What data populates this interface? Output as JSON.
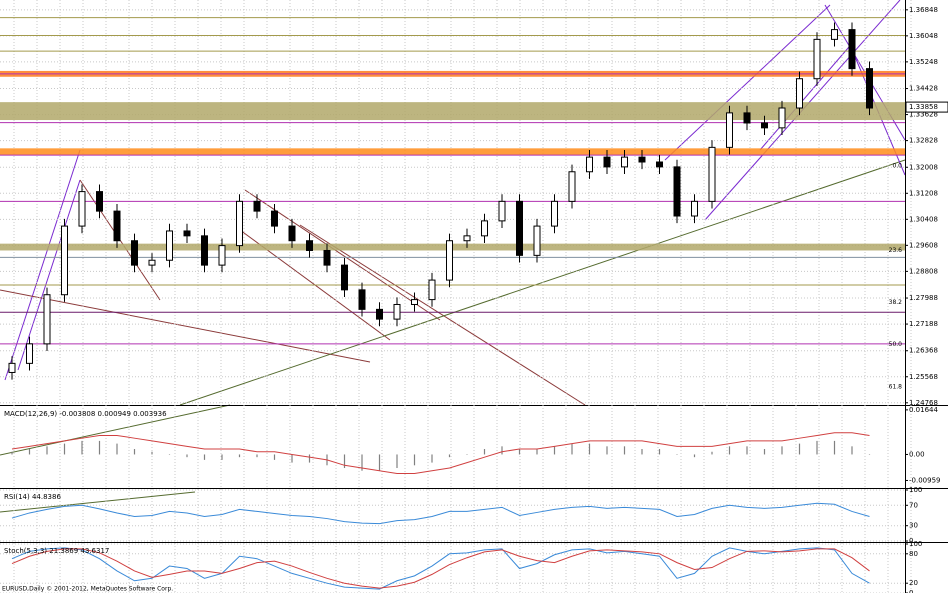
{
  "chart_data": [
    {
      "type": "candlestick",
      "ylim": [
        1.247,
        1.3715
      ],
      "yticks": [
        1.24768,
        1.25568,
        1.26368,
        1.27188,
        1.27988,
        1.28808,
        1.29608,
        1.30408,
        1.31208,
        1.32008,
        1.32828,
        1.33628,
        1.34428,
        1.35248,
        1.36048,
        1.36848
      ],
      "grid": true,
      "open": [
        1.257,
        1.2598,
        1.2658,
        1.2809,
        1.302,
        1.3126,
        1.3066,
        1.2975,
        1.29,
        1.2915,
        1.3005,
        1.299,
        1.29,
        1.296,
        1.3096,
        1.3066,
        1.302,
        1.2975,
        1.2945,
        1.29,
        1.2824,
        1.2764,
        1.2734,
        1.2779,
        1.2794,
        1.2854,
        1.2975,
        1.299,
        1.3036,
        1.3096,
        1.293,
        1.302,
        1.3096,
        1.3187,
        1.3232,
        1.3202,
        1.3232,
        1.3217,
        1.3202,
        1.3051,
        1.3096,
        1.3262,
        1.3368,
        1.3337,
        1.3322,
        1.3383,
        1.3473,
        1.3594,
        1.3624,
        1.3504
      ],
      "high": [
        1.262,
        1.268,
        1.2831,
        1.3042,
        1.3148,
        1.3148,
        1.3088,
        1.2997,
        1.2937,
        1.3027,
        1.3027,
        1.3012,
        1.2982,
        1.3118,
        1.3118,
        1.3088,
        1.3042,
        1.2997,
        1.2967,
        1.2922,
        1.2846,
        1.2786,
        1.2801,
        1.2816,
        1.2876,
        1.2997,
        1.3012,
        1.3058,
        1.3118,
        1.3118,
        1.3042,
        1.3118,
        1.3209,
        1.3254,
        1.3254,
        1.3254,
        1.3254,
        1.3239,
        1.3224,
        1.3118,
        1.3284,
        1.339,
        1.339,
        1.3359,
        1.3405,
        1.3495,
        1.3616,
        1.3646,
        1.3646,
        1.3526
      ],
      "low": [
        1.2548,
        1.2576,
        1.2636,
        1.2787,
        1.2998,
        1.3044,
        1.2953,
        1.2878,
        1.2878,
        1.2893,
        1.2968,
        1.2878,
        1.2878,
        1.2938,
        1.3044,
        1.2998,
        1.2953,
        1.2923,
        1.2878,
        1.2802,
        1.2742,
        1.2712,
        1.2712,
        1.2757,
        1.2772,
        1.2832,
        1.2953,
        1.2968,
        1.3014,
        1.2908,
        1.2908,
        1.2998,
        1.3074,
        1.3165,
        1.318,
        1.318,
        1.3195,
        1.318,
        1.3029,
        1.3029,
        1.3074,
        1.324,
        1.3315,
        1.33,
        1.33,
        1.3361,
        1.3451,
        1.3572,
        1.3482,
        1.3361
      ],
      "close": [
        1.2598,
        1.2658,
        1.2809,
        1.302,
        1.3126,
        1.3066,
        1.2975,
        1.29,
        1.2915,
        1.3005,
        1.299,
        1.29,
        1.296,
        1.3096,
        1.3066,
        1.302,
        1.2975,
        1.2945,
        1.29,
        1.2824,
        1.2764,
        1.2734,
        1.2779,
        1.2794,
        1.2854,
        1.2975,
        1.299,
        1.3036,
        1.3096,
        1.293,
        1.302,
        1.3096,
        1.3187,
        1.3232,
        1.3202,
        1.3232,
        1.3217,
        1.3202,
        1.3051,
        1.3096,
        1.3262,
        1.3368,
        1.3337,
        1.3322,
        1.3383,
        1.3473,
        1.3594,
        1.3624,
        1.3504,
        1.3383
      ],
      "bands": [
        {
          "from": 1.3346,
          "to": 1.3401,
          "color": "#b1a86a"
        },
        {
          "from": 1.3238,
          "to": 1.3259,
          "color": "#ff8c1a"
        },
        {
          "from": 1.3479,
          "to": 1.3497,
          "color": "#ff7a1a"
        },
        {
          "from": 1.2945,
          "to": 1.2966,
          "color": "#b1a86a"
        }
      ],
      "levels": [
        {
          "value": 1.3661,
          "color": "#a39a4c"
        },
        {
          "value": 1.3606,
          "color": "#a39a4c"
        },
        {
          "value": 1.3558,
          "color": "#a39a4c"
        },
        {
          "value": 1.3488,
          "color": "#b030b0"
        },
        {
          "value": 1.3338,
          "color": "#b030b0"
        },
        {
          "value": 1.3238,
          "color": "#b030b0"
        },
        {
          "value": 1.3096,
          "color": "#b030b0"
        },
        {
          "value": 1.2924,
          "color": "#8090a0"
        },
        {
          "value": 1.2839,
          "color": "#a39a4c"
        },
        {
          "value": 1.2755,
          "color": "#6a1a6a"
        },
        {
          "value": 1.2658,
          "color": "#b030b0"
        }
      ],
      "annotations": [
        {
          "value": 1.3193,
          "label": "0.0"
        },
        {
          "value": 1.2933,
          "label": "23.6"
        },
        {
          "value": 1.2773,
          "label": "38.2"
        },
        {
          "value": 1.2643,
          "label": "50.0"
        },
        {
          "value": 1.2513,
          "label": "61.8"
        }
      ],
      "last": 1.33858
    },
    {
      "type": "macd",
      "title": "MACD(12,26,9) -0.003808 0.000949 0.003936",
      "ylim": [
        -0.012,
        0.0175
      ],
      "yticks": [
        -0.00959,
        {
          "value": 0,
          "label": "0.00"
        },
        0.01644
      ],
      "histogram": {
        "color": "#808080",
        "values": [
          0.001,
          0.002,
          0.003,
          0.004,
          0.005,
          0.005,
          0.004,
          0.002,
          0.001,
          0.0,
          -0.001,
          -0.002,
          -0.002,
          -0.001,
          -0.001,
          -0.002,
          -0.003,
          -0.003,
          -0.004,
          -0.005,
          -0.006,
          -0.006,
          -0.005,
          -0.004,
          -0.003,
          -0.001,
          0.0,
          0.002,
          0.003,
          0.002,
          0.002,
          0.003,
          0.004,
          0.004,
          0.003,
          0.003,
          0.002,
          0.002,
          0.0,
          -0.001,
          0.001,
          0.003,
          0.003,
          0.002,
          0.003,
          0.004,
          0.005,
          0.005,
          0.003,
          0.0
        ]
      },
      "signal": {
        "color": "#d04040",
        "values": [
          0.002,
          0.003,
          0.004,
          0.005,
          0.006,
          0.007,
          0.007,
          0.006,
          0.005,
          0.004,
          0.003,
          0.002,
          0.002,
          0.002,
          0.001,
          0.001,
          0.0,
          -0.001,
          -0.002,
          -0.004,
          -0.005,
          -0.006,
          -0.007,
          -0.007,
          -0.006,
          -0.005,
          -0.003,
          -0.001,
          0.001,
          0.002,
          0.002,
          0.003,
          0.004,
          0.005,
          0.005,
          0.005,
          0.005,
          0.004,
          0.003,
          0.003,
          0.003,
          0.004,
          0.005,
          0.005,
          0.005,
          0.006,
          0.007,
          0.008,
          0.008,
          0.007
        ]
      }
    },
    {
      "type": "line",
      "title": "RSI(14) 44.8386",
      "ylim": [
        0,
        100
      ],
      "yticks": [
        0,
        30,
        70,
        100
      ],
      "grid": true,
      "series": [
        {
          "color": "#3a8ad8",
          "values": [
            45,
            55,
            62,
            68,
            70,
            63,
            55,
            48,
            50,
            58,
            55,
            48,
            52,
            62,
            58,
            54,
            50,
            48,
            44,
            38,
            35,
            34,
            40,
            42,
            48,
            58,
            58,
            62,
            66,
            50,
            56,
            62,
            66,
            68,
            64,
            66,
            64,
            62,
            48,
            52,
            64,
            70,
            66,
            64,
            66,
            70,
            74,
            72,
            58,
            48
          ]
        }
      ]
    },
    {
      "type": "line",
      "title": "Stoch(5,3,3) 21.3869 43.6317",
      "ylim": [
        0,
        100
      ],
      "yticks": [
        0,
        20,
        80,
        100
      ],
      "grid": true,
      "series": [
        {
          "color": "#3a8ad8",
          "values": [
            70,
            85,
            90,
            92,
            88,
            70,
            45,
            25,
            30,
            55,
            50,
            30,
            40,
            75,
            70,
            55,
            40,
            30,
            20,
            12,
            10,
            8,
            25,
            35,
            55,
            80,
            82,
            88,
            90,
            50,
            60,
            78,
            88,
            90,
            82,
            85,
            80,
            75,
            30,
            40,
            75,
            92,
            85,
            80,
            85,
            90,
            92,
            88,
            40,
            20
          ]
        },
        {
          "color": "#d04040",
          "values": [
            60,
            75,
            85,
            90,
            90,
            82,
            65,
            45,
            32,
            38,
            45,
            45,
            40,
            50,
            62,
            65,
            55,
            42,
            30,
            20,
            14,
            10,
            14,
            22,
            38,
            58,
            72,
            84,
            88,
            75,
            66,
            62,
            75,
            86,
            88,
            86,
            84,
            80,
            62,
            48,
            52,
            70,
            85,
            86,
            84,
            86,
            90,
            90,
            72,
            45
          ]
        }
      ],
      "footer": "EURUSD,Daily  © 2001-2012, MetaQuotes Software Corp."
    }
  ]
}
